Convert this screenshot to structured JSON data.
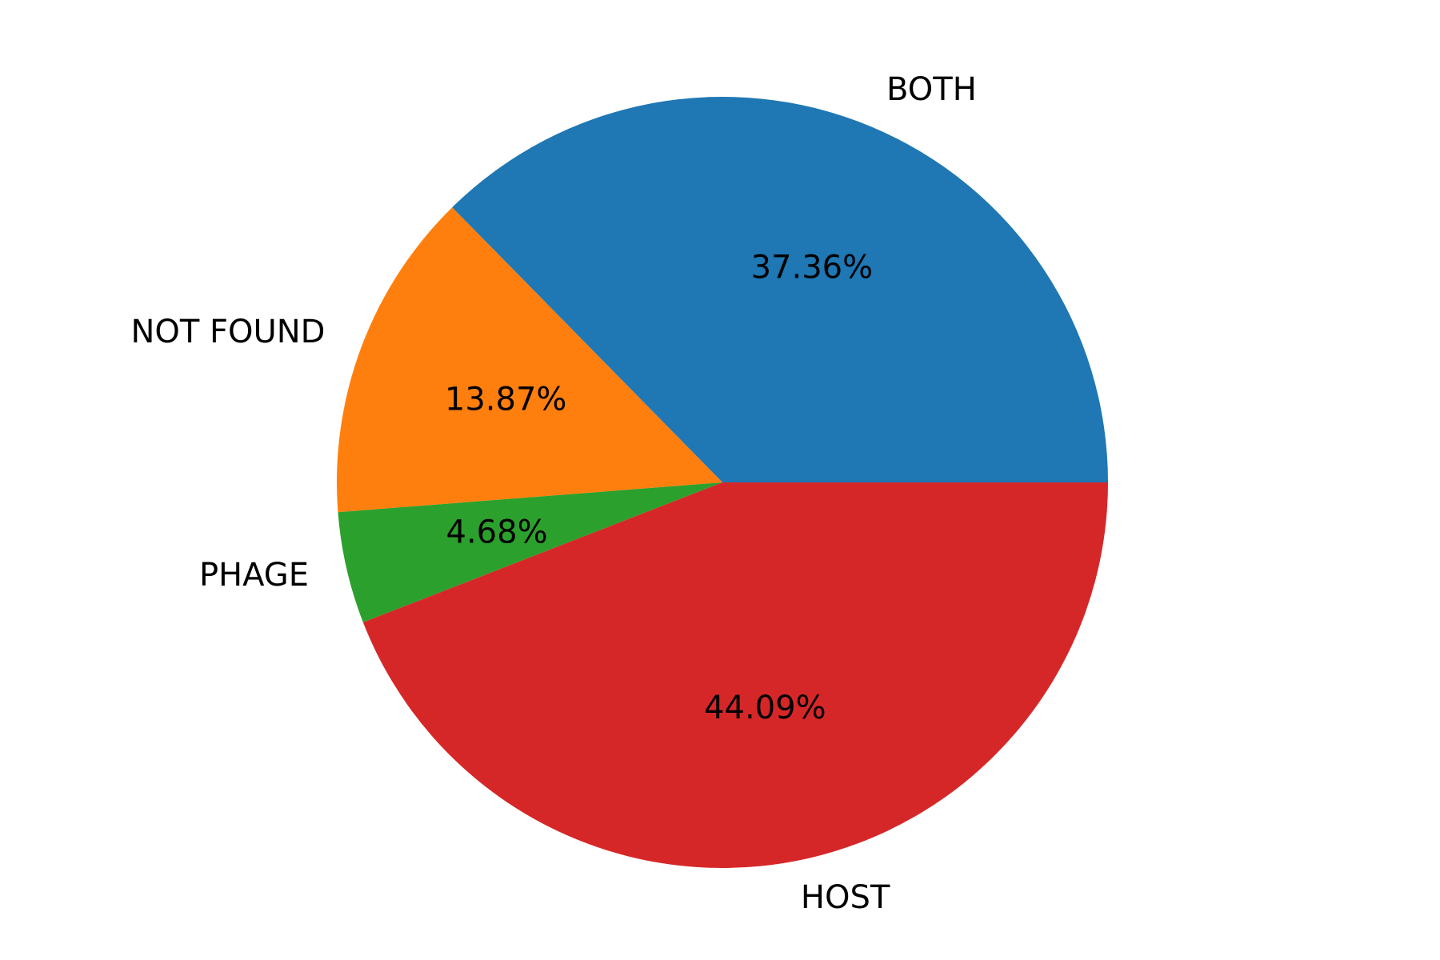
{
  "chart_data": {
    "type": "pie",
    "title": "",
    "start_angle_deg": 0,
    "direction": "counterclockwise",
    "slices": [
      {
        "label": "BOTH",
        "value": 37.36,
        "pct_text": "37.36%",
        "color": "#1f77b4"
      },
      {
        "label": "NOT FOUND",
        "value": 13.87,
        "pct_text": "13.87%",
        "color": "#ff7f0e"
      },
      {
        "label": "PHAGE",
        "value": 4.68,
        "pct_text": "4.68%",
        "color": "#2ca02c"
      },
      {
        "label": "HOST",
        "value": 44.09,
        "pct_text": "44.09%",
        "color": "#d62728"
      }
    ]
  }
}
